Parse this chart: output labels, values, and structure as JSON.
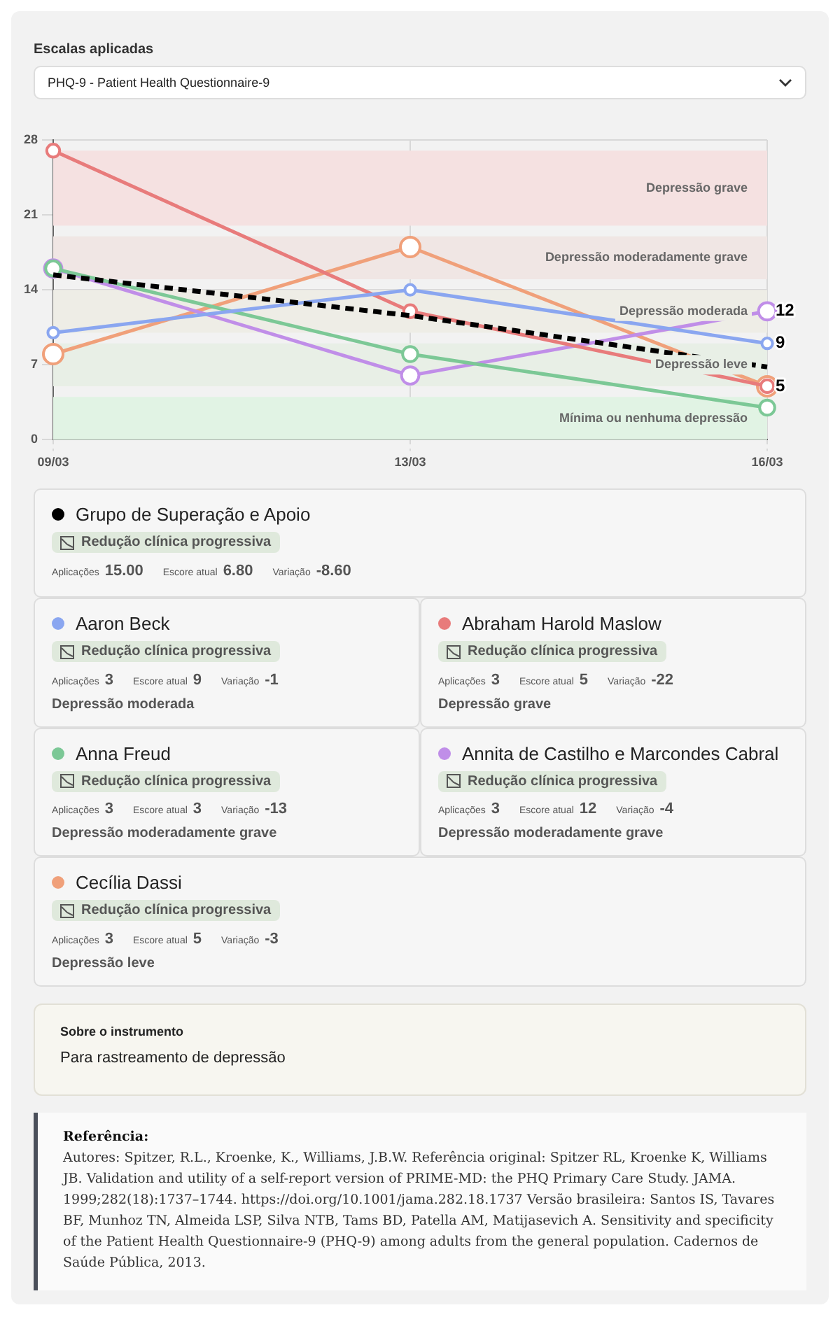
{
  "chart_data": [
    {
      "type": "line",
      "title": "Escalas aplicadas",
      "subtitle": "PHQ-9 - Patient Health Questionnaire-9",
      "categories": [
        "09/03",
        "13/03",
        "16/03"
      ],
      "ylim": [
        0,
        28
      ],
      "yticks": [
        0,
        7,
        14,
        21,
        28
      ],
      "grid": true,
      "marker": "circle",
      "legend": "bottom",
      "series": [
        {
          "name": "Grupo de Superação e Apoio",
          "color": "#000000",
          "values": [
            15.4,
            11.6,
            6.8
          ],
          "marker": "none",
          "line_style": "dashed"
        },
        {
          "name": "Aaron Beck",
          "color": "#8aa6f0",
          "values": [
            10,
            14,
            9
          ]
        },
        {
          "name": "Abraham Harold Maslow",
          "color": "#e87b7b",
          "values": [
            27,
            12,
            5
          ]
        },
        {
          "name": "Anna Freud",
          "color": "#7cc896",
          "values": [
            16,
            8,
            3
          ]
        },
        {
          "name": "Annita de Castilho e Marcondes Cabral",
          "color": "#c08ee8",
          "values": [
            16,
            6,
            12
          ]
        },
        {
          "name": "Cecília Dassi",
          "color": "#f0a07a",
          "values": [
            8,
            18,
            5
          ]
        }
      ],
      "bands": [
        {
          "axis": "y",
          "from": 20,
          "to": 27,
          "label": "Depressão grave",
          "color": "#f5e1e1"
        },
        {
          "axis": "y",
          "from": 15,
          "to": 19,
          "label": "Depressão moderadamente grave",
          "color": "#f0e6e4"
        },
        {
          "axis": "y",
          "from": 10,
          "to": 14,
          "label": "Depressão moderada",
          "color": "#eeede6"
        },
        {
          "axis": "y",
          "from": 5,
          "to": 9,
          "label": "Depressão leve",
          "color": "#e8efe6"
        },
        {
          "axis": "y",
          "from": 0,
          "to": 4,
          "label": "Mínima ou nenhuma depressão",
          "color": "#e1f3e4"
        }
      ],
      "annotations": [
        {
          "text": "12",
          "x": "16/03",
          "y": 12
        },
        {
          "text": "9",
          "x": "16/03",
          "y": 9
        },
        {
          "text": "5",
          "x": "16/03",
          "y": 5
        }
      ]
    },
    {
      "type": "other",
      "annotations": [
        "Redução clínica progressiva",
        "Aplicações",
        "15.00",
        "Escore atual",
        "6.80",
        "Variação",
        "-8.60"
      ]
    },
    {
      "type": "other",
      "annotations": [
        "Redução clínica progressiva",
        "Aplicações",
        "3",
        "Escore atual",
        "9",
        "Variação",
        "-1",
        "Depressão moderada"
      ]
    },
    {
      "type": "other",
      "annotations": [
        "Redução clínica progressiva",
        "Aplicações",
        "3",
        "Escore atual",
        "5",
        "Variação",
        "-22",
        "Depressão grave"
      ]
    },
    {
      "type": "other",
      "annotations": [
        "Redução clínica progressiva",
        "Aplicações",
        "3",
        "Escore atual",
        "3",
        "Variação",
        "-13",
        "Depressão moderadamente grave"
      ]
    },
    {
      "type": "other",
      "annotations": [
        "Redução clínica progressiva",
        "Aplicações",
        "3",
        "Escore atual",
        "12",
        "Variação",
        "-4",
        "Depressão moderadamente grave"
      ]
    },
    {
      "type": "other",
      "annotations": [
        "Redução clínica progressiva",
        "Aplicações",
        "3",
        "Escore atual",
        "5",
        "Variação",
        "-3",
        "Depressão leve"
      ]
    },
    {
      "type": "other",
      "title": "Sobre o instrumento",
      "annotations": [
        "Para rastreamento de depressão"
      ]
    },
    {
      "type": "other",
      "title": "Referência:",
      "annotations": [
        "Autores: Spitzer, R.L., Kroenke, K., Williams, J.B.W. Referência original: Spitzer RL, Kroenke K, Williams JB. Validation and utility of a self-report version of PRIME-MD: the PHQ Primary Care Study. JAMA. 1999;282(18):1737–1744. https://doi.org/10.1001/jama.282.18.1737 Versão brasileira: Santos IS, Tavares BF, Munhoz TN, Almeida LSP, Silva NTB, Tams BD, Patella AM, Matijasevich A. Sensitivity and specificity of the Patient Health Questionnaire-9 (PHQ-9) among adults from the general population. Cadernos de Saúde Pública, 2013."
      ]
    }
  ]
}
